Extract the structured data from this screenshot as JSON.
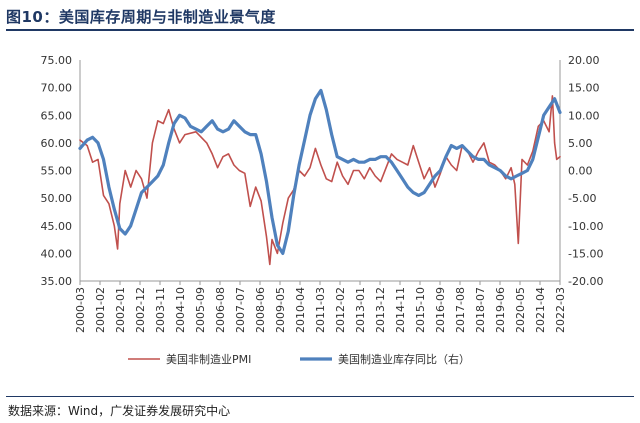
{
  "figure_title": "图10：美国库存周期与非制造业景气度",
  "source_note": "数据来源：Wind，广发证券发展研究中心",
  "chart_data": {
    "type": "line",
    "title": "美国库存周期与非制造业景气度",
    "x_start": 2000.17,
    "x_end": 2022.25,
    "x_tick_labels": [
      "2000-03",
      "2001-02",
      "2002-01",
      "2002-12",
      "2003-11",
      "2004-10",
      "2005-09",
      "2006-08",
      "2007-07",
      "2008-06",
      "2009-05",
      "2010-04",
      "2011-03",
      "2012-02",
      "2013-01",
      "2013-12",
      "2014-11",
      "2015-10",
      "2016-09",
      "2017-08",
      "2018-07",
      "2019-06",
      "2020-05",
      "2021-04",
      "2022-03"
    ],
    "y_left": {
      "min": 35,
      "max": 75,
      "step": 5,
      "tick_labels": [
        "35.00",
        "40.00",
        "45.00",
        "50.00",
        "55.00",
        "60.00",
        "65.00",
        "70.00",
        "75.00"
      ]
    },
    "y_right": {
      "min": -20,
      "max": 20,
      "step": 5,
      "tick_labels": [
        "-20.00",
        "-15.00",
        "-10.00",
        "-5.00",
        "0.00",
        "5.00",
        "10.00",
        "15.00",
        "20.00"
      ]
    },
    "grid": false,
    "legend_position": "bottom",
    "series": [
      {
        "name": "美国非制造业PMI",
        "axis": "left",
        "color": "#c0504d",
        "points": [
          [
            2000.17,
            60.5
          ],
          [
            2000.5,
            59.5
          ],
          [
            2000.75,
            56.5
          ],
          [
            2001.0,
            57.0
          ],
          [
            2001.25,
            50.5
          ],
          [
            2001.5,
            49.0
          ],
          [
            2001.75,
            45.0
          ],
          [
            2001.9,
            40.8
          ],
          [
            2002.0,
            49.0
          ],
          [
            2002.25,
            55.0
          ],
          [
            2002.5,
            52.0
          ],
          [
            2002.75,
            55.0
          ],
          [
            2003.0,
            53.5
          ],
          [
            2003.25,
            50.0
          ],
          [
            2003.5,
            60.0
          ],
          [
            2003.75,
            64.0
          ],
          [
            2004.0,
            63.5
          ],
          [
            2004.25,
            66.0
          ],
          [
            2004.5,
            62.5
          ],
          [
            2004.75,
            60.0
          ],
          [
            2005.0,
            61.5
          ],
          [
            2005.5,
            62.0
          ],
          [
            2006.0,
            60.0
          ],
          [
            2006.25,
            58.0
          ],
          [
            2006.5,
            55.5
          ],
          [
            2006.75,
            57.5
          ],
          [
            2007.0,
            58.0
          ],
          [
            2007.25,
            56.0
          ],
          [
            2007.5,
            55.0
          ],
          [
            2007.75,
            54.5
          ],
          [
            2008.0,
            48.5
          ],
          [
            2008.25,
            52.0
          ],
          [
            2008.5,
            49.5
          ],
          [
            2008.75,
            43.0
          ],
          [
            2008.9,
            38.0
          ],
          [
            2009.0,
            42.5
          ],
          [
            2009.25,
            40.0
          ],
          [
            2009.5,
            45.5
          ],
          [
            2009.75,
            50.0
          ],
          [
            2010.0,
            51.5
          ],
          [
            2010.25,
            55.0
          ],
          [
            2010.5,
            54.0
          ],
          [
            2010.75,
            55.5
          ],
          [
            2011.0,
            59.0
          ],
          [
            2011.25,
            56.0
          ],
          [
            2011.5,
            53.5
          ],
          [
            2011.75,
            53.0
          ],
          [
            2012.0,
            56.5
          ],
          [
            2012.25,
            54.0
          ],
          [
            2012.5,
            52.5
          ],
          [
            2012.75,
            55.0
          ],
          [
            2013.0,
            55.0
          ],
          [
            2013.25,
            53.5
          ],
          [
            2013.5,
            55.5
          ],
          [
            2013.75,
            54.0
          ],
          [
            2014.0,
            53.0
          ],
          [
            2014.25,
            55.5
          ],
          [
            2014.5,
            58.0
          ],
          [
            2014.75,
            57.0
          ],
          [
            2015.0,
            56.5
          ],
          [
            2015.25,
            56.0
          ],
          [
            2015.5,
            59.5
          ],
          [
            2015.75,
            56.5
          ],
          [
            2016.0,
            53.5
          ],
          [
            2016.25,
            55.5
          ],
          [
            2016.5,
            52.0
          ],
          [
            2016.75,
            54.5
          ],
          [
            2017.0,
            57.5
          ],
          [
            2017.25,
            56.0
          ],
          [
            2017.5,
            55.0
          ],
          [
            2017.75,
            59.5
          ],
          [
            2018.0,
            58.5
          ],
          [
            2018.25,
            56.5
          ],
          [
            2018.5,
            58.5
          ],
          [
            2018.75,
            60.0
          ],
          [
            2019.0,
            56.5
          ],
          [
            2019.25,
            56.0
          ],
          [
            2019.5,
            55.0
          ],
          [
            2019.75,
            53.5
          ],
          [
            2020.0,
            55.5
          ],
          [
            2020.17,
            52.5
          ],
          [
            2020.33,
            41.8
          ],
          [
            2020.5,
            57.0
          ],
          [
            2020.75,
            56.0
          ],
          [
            2021.0,
            58.5
          ],
          [
            2021.25,
            63.0
          ],
          [
            2021.5,
            64.0
          ],
          [
            2021.75,
            62.0
          ],
          [
            2021.9,
            68.5
          ],
          [
            2022.0,
            60.0
          ],
          [
            2022.1,
            57.0
          ],
          [
            2022.25,
            57.5
          ]
        ]
      },
      {
        "name": "美国制造业库存同比（右）",
        "axis": "right",
        "color": "#4f81bd",
        "points": [
          [
            2000.17,
            4.0
          ],
          [
            2000.5,
            5.5
          ],
          [
            2000.75,
            6.0
          ],
          [
            2001.0,
            5.0
          ],
          [
            2001.25,
            2.0
          ],
          [
            2001.5,
            -3.0
          ],
          [
            2001.75,
            -7.0
          ],
          [
            2002.0,
            -10.5
          ],
          [
            2002.25,
            -11.5
          ],
          [
            2002.5,
            -10.0
          ],
          [
            2002.75,
            -7.0
          ],
          [
            2003.0,
            -4.0
          ],
          [
            2003.25,
            -3.0
          ],
          [
            2003.5,
            -2.0
          ],
          [
            2003.75,
            -1.0
          ],
          [
            2004.0,
            1.0
          ],
          [
            2004.25,
            5.0
          ],
          [
            2004.5,
            8.5
          ],
          [
            2004.75,
            10.0
          ],
          [
            2005.0,
            9.5
          ],
          [
            2005.25,
            8.0
          ],
          [
            2005.5,
            7.5
          ],
          [
            2005.75,
            7.0
          ],
          [
            2006.0,
            8.0
          ],
          [
            2006.25,
            9.0
          ],
          [
            2006.5,
            7.5
          ],
          [
            2006.75,
            7.0
          ],
          [
            2007.0,
            7.5
          ],
          [
            2007.25,
            9.0
          ],
          [
            2007.5,
            8.0
          ],
          [
            2007.75,
            7.0
          ],
          [
            2008.0,
            6.5
          ],
          [
            2008.25,
            6.5
          ],
          [
            2008.5,
            3.0
          ],
          [
            2008.75,
            -2.0
          ],
          [
            2009.0,
            -8.5
          ],
          [
            2009.25,
            -13.5
          ],
          [
            2009.5,
            -15.0
          ],
          [
            2009.75,
            -11.0
          ],
          [
            2010.0,
            -4.5
          ],
          [
            2010.25,
            1.0
          ],
          [
            2010.5,
            5.5
          ],
          [
            2010.75,
            10.0
          ],
          [
            2011.0,
            13.0
          ],
          [
            2011.25,
            14.5
          ],
          [
            2011.5,
            11.0
          ],
          [
            2011.75,
            6.5
          ],
          [
            2012.0,
            2.5
          ],
          [
            2012.25,
            2.0
          ],
          [
            2012.5,
            1.5
          ],
          [
            2012.75,
            2.0
          ],
          [
            2013.0,
            1.5
          ],
          [
            2013.25,
            1.5
          ],
          [
            2013.5,
            2.0
          ],
          [
            2013.75,
            2.0
          ],
          [
            2014.0,
            2.5
          ],
          [
            2014.25,
            2.5
          ],
          [
            2014.5,
            1.5
          ],
          [
            2014.75,
            0.0
          ],
          [
            2015.0,
            -1.5
          ],
          [
            2015.25,
            -3.0
          ],
          [
            2015.5,
            -4.0
          ],
          [
            2015.75,
            -4.5
          ],
          [
            2016.0,
            -4.0
          ],
          [
            2016.25,
            -2.5
          ],
          [
            2016.5,
            -1.0
          ],
          [
            2016.75,
            0.0
          ],
          [
            2017.0,
            2.5
          ],
          [
            2017.25,
            4.5
          ],
          [
            2017.5,
            4.0
          ],
          [
            2017.75,
            4.5
          ],
          [
            2018.0,
            3.5
          ],
          [
            2018.25,
            2.5
          ],
          [
            2018.5,
            2.0
          ],
          [
            2018.75,
            2.0
          ],
          [
            2019.0,
            1.0
          ],
          [
            2019.25,
            0.5
          ],
          [
            2019.5,
            0.0
          ],
          [
            2019.75,
            -1.0
          ],
          [
            2020.0,
            -1.5
          ],
          [
            2020.25,
            -1.0
          ],
          [
            2020.5,
            -0.5
          ],
          [
            2020.75,
            0.0
          ],
          [
            2021.0,
            2.0
          ],
          [
            2021.25,
            6.0
          ],
          [
            2021.5,
            10.0
          ],
          [
            2021.75,
            11.5
          ],
          [
            2022.0,
            13.0
          ],
          [
            2022.25,
            10.5
          ]
        ]
      }
    ]
  }
}
